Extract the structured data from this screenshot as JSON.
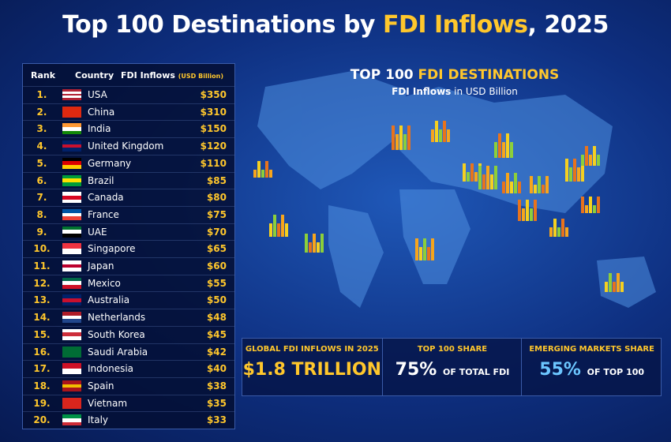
{
  "header": {
    "title_start": "Top 100 Destinations by",
    "title_highlight": "FDI Inflows",
    "title_end": ", 2025"
  },
  "table": {
    "headers": {
      "rank": "Rank",
      "country": "Country",
      "fdi": "FDI Inflows",
      "unit": "(USD Billion)"
    },
    "rows": [
      {
        "rank": "1.",
        "country": "USA",
        "fdi": "$350",
        "flag": [
          "#b22234",
          "#ffffff",
          "#b22234",
          "#ffffff",
          "#b22234"
        ]
      },
      {
        "rank": "2.",
        "country": "China",
        "fdi": "$310",
        "flag": [
          "#de2910"
        ]
      },
      {
        "rank": "3.",
        "country": "India",
        "fdi": "$150",
        "flag": [
          "#ff9933",
          "#ffffff",
          "#138808"
        ]
      },
      {
        "rank": "4.",
        "country": "United Kingdom",
        "fdi": "$120",
        "flag": [
          "#012169",
          "#c8102e",
          "#012169"
        ]
      },
      {
        "rank": "5.",
        "country": "Germany",
        "fdi": "$110",
        "flag": [
          "#000000",
          "#dd0000",
          "#ffce00"
        ]
      },
      {
        "rank": "6.",
        "country": "Brazil",
        "fdi": "$85",
        "flag": [
          "#009c3b",
          "#ffdf00",
          "#009c3b"
        ]
      },
      {
        "rank": "7.",
        "country": "Canada",
        "fdi": "$80",
        "flag": [
          "#ffffff",
          "#d80621",
          "#ffffff"
        ]
      },
      {
        "rank": "8.",
        "country": "France",
        "fdi": "$75",
        "flag": [
          "#0055a4",
          "#ffffff",
          "#ef4135"
        ]
      },
      {
        "rank": "9.",
        "country": "UAE",
        "fdi": "$70",
        "flag": [
          "#00732f",
          "#ffffff",
          "#000000"
        ]
      },
      {
        "rank": "10.",
        "country": "Singapore",
        "fdi": "$65",
        "flag": [
          "#ef3340",
          "#ffffff"
        ]
      },
      {
        "rank": "11.",
        "country": "Japan",
        "fdi": "$60",
        "flag": [
          "#ffffff",
          "#bc002d",
          "#ffffff"
        ]
      },
      {
        "rank": "12.",
        "country": "Mexico",
        "fdi": "$55",
        "flag": [
          "#006847",
          "#ffffff",
          "#ce1126"
        ]
      },
      {
        "rank": "13.",
        "country": "Australia",
        "fdi": "$50",
        "flag": [
          "#012169",
          "#c8102e",
          "#012169"
        ]
      },
      {
        "rank": "14.",
        "country": "Netherlands",
        "fdi": "$48",
        "flag": [
          "#ae1c28",
          "#ffffff",
          "#21468b"
        ]
      },
      {
        "rank": "15.",
        "country": "South Korea",
        "fdi": "$45",
        "flag": [
          "#ffffff",
          "#cd2e3a",
          "#ffffff"
        ]
      },
      {
        "rank": "16.",
        "country": "Saudi Arabia",
        "fdi": "$42",
        "flag": [
          "#006c35"
        ]
      },
      {
        "rank": "17.",
        "country": "Indonesia",
        "fdi": "$40",
        "flag": [
          "#ce1126",
          "#ffffff"
        ]
      },
      {
        "rank": "18.",
        "country": "Spain",
        "fdi": "$38",
        "flag": [
          "#aa151b",
          "#f1bf00",
          "#aa151b"
        ]
      },
      {
        "rank": "19.",
        "country": "Vietnam",
        "fdi": "$35",
        "flag": [
          "#da251d"
        ]
      },
      {
        "rank": "20.",
        "country": "Italy",
        "fdi": "$33",
        "flag": [
          "#009246",
          "#ffffff",
          "#ce2b37"
        ]
      }
    ]
  },
  "map": {
    "title_start": "TOP 100",
    "title_highlight": "FDI DESTINATIONS",
    "subtitle_bold": "FDI Inflows",
    "subtitle_rest": "in USD Billion"
  },
  "stats": [
    {
      "label": "GLOBAL FDI INFLOWS IN 2025",
      "value": "$1.8 TRILLION",
      "suffix": null
    },
    {
      "label": "TOP 100 SHARE",
      "value": "75%",
      "suffix": "OF TOTAL FDI"
    },
    {
      "label": "EMERGING MARKETS SHARE",
      "value": "55%",
      "suffix": "OF TOP 100"
    }
  ]
}
